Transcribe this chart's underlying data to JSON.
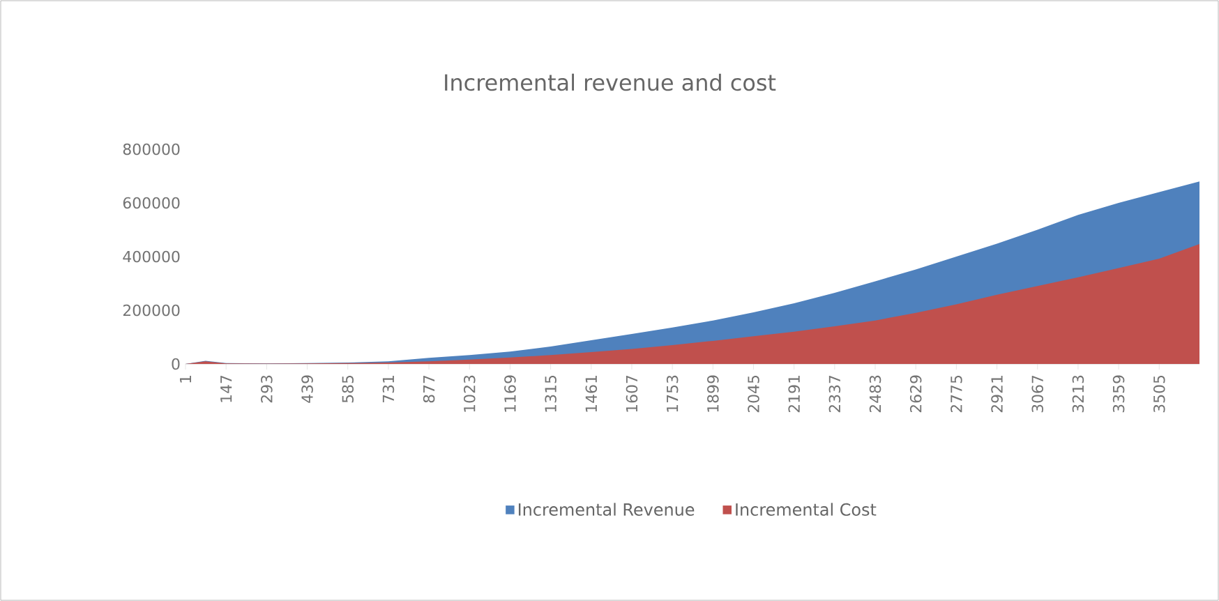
{
  "chart_data": {
    "type": "area",
    "title": "Incremental revenue and cost",
    "x": [
      1,
      73,
      147,
      293,
      439,
      585,
      731,
      877,
      1023,
      1169,
      1315,
      1461,
      1607,
      1753,
      1899,
      2045,
      2191,
      2337,
      2483,
      2629,
      2775,
      2921,
      3067,
      3213,
      3359,
      3505,
      3650
    ],
    "series": [
      {
        "name": "Incremental Revenue",
        "color": "#4f81bd",
        "values": [
          0,
          12000,
          3000,
          2000,
          3000,
          5000,
          10000,
          23000,
          33000,
          46000,
          65000,
          88000,
          112000,
          136000,
          162000,
          192000,
          226000,
          265000,
          308000,
          352000,
          400000,
          448000,
          500000,
          555000,
          600000,
          640000,
          680000
        ]
      },
      {
        "name": "Incremental Cost",
        "color": "#c0504d",
        "values": [
          0,
          10000,
          2000,
          1000,
          2000,
          3000,
          5000,
          10000,
          16000,
          24000,
          33000,
          44000,
          56000,
          70000,
          86000,
          103000,
          120000,
          140000,
          162000,
          190000,
          222000,
          258000,
          290000,
          323000,
          357000,
          392000,
          447000
        ]
      }
    ],
    "xlim": [
      1,
      3650
    ],
    "xticks": [
      1,
      147,
      293,
      439,
      585,
      731,
      877,
      1023,
      1169,
      1315,
      1461,
      1607,
      1753,
      1899,
      2045,
      2191,
      2337,
      2483,
      2629,
      2775,
      2921,
      3067,
      3213,
      3359,
      3505
    ],
    "ylim": [
      0,
      800000
    ],
    "yticks": [
      0,
      200000,
      400000,
      600000,
      800000
    ],
    "grid": false,
    "legend": "bottom"
  }
}
